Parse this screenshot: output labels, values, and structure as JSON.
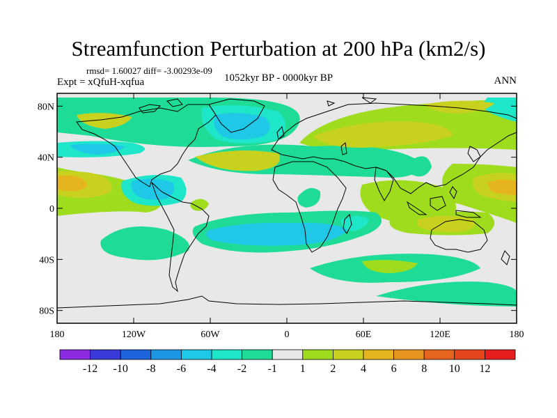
{
  "title": "Streamfunction Perturbation at 200 hPa (km2/s)",
  "stats": "rmsd= 1.60027 diff= -3.00293e-09",
  "experiment": "Expt = xQfuH-xqfua",
  "period": "1052kyr BP - 0000kyr BP",
  "season": "ANN",
  "map": {
    "projection": "cylindrical equidistant",
    "lon_range": [
      -180,
      180
    ],
    "lat_range": [
      -90,
      90
    ],
    "lat_ticks": [
      {
        "value": 80,
        "label": "80N"
      },
      {
        "value": 40,
        "label": "40N"
      },
      {
        "value": 0,
        "label": "0"
      },
      {
        "value": -40,
        "label": "40S"
      },
      {
        "value": -80,
        "label": "80S"
      }
    ],
    "lon_ticks": [
      {
        "value": -180,
        "label": "180"
      },
      {
        "value": -120,
        "label": "120W"
      },
      {
        "value": -60,
        "label": "60W"
      },
      {
        "value": 0,
        "label": "0"
      },
      {
        "value": 60,
        "label": "60E"
      },
      {
        "value": 120,
        "label": "120E"
      },
      {
        "value": 180,
        "label": "180"
      }
    ],
    "background_color": "#e8e8e8"
  },
  "colorbar": {
    "colors": [
      "#8a2be2",
      "#3a3ad8",
      "#1e64dc",
      "#1e96e6",
      "#1ec8e6",
      "#1ee6c8",
      "#1edc96",
      "#e8e8e8",
      "#a0dc1e",
      "#c8d21e",
      "#e6b41e",
      "#e6961e",
      "#e6641e",
      "#e6461e",
      "#e61e1e"
    ],
    "labels": [
      "-12",
      "-10",
      "-8",
      "-6",
      "-4",
      "-2",
      "-1",
      "1",
      "2",
      "4",
      "6",
      "8",
      "10",
      "12"
    ]
  },
  "chart_data": {
    "type": "contour-map",
    "title": "Streamfunction Perturbation at 200 hPa (km2/s)",
    "levels": [
      -12,
      -10,
      -8,
      -6,
      -4,
      -2,
      -1,
      1,
      2,
      4,
      6,
      8,
      10,
      12
    ],
    "features": [
      {
        "lon": 170,
        "lat": 20,
        "value": 4,
        "color": "#e6b41e"
      },
      {
        "lon": -160,
        "lat": 20,
        "value": 4,
        "color": "#e6b41e"
      },
      {
        "lon": -55,
        "lat": 65,
        "value": -4,
        "color": "#1ec8e6"
      },
      {
        "lon": -100,
        "lat": 17,
        "value": -4,
        "color": "#1ec8e6"
      },
      {
        "lon": -160,
        "lat": 42,
        "value": -2,
        "color": "#1ee6c8"
      },
      {
        "lon": -30,
        "lat": -30,
        "value": -2,
        "color": "#1ee6c8"
      },
      {
        "lon": 50,
        "lat": -40,
        "value": -1,
        "color": "#1edc96"
      },
      {
        "lon": -40,
        "lat": 30,
        "value": 2,
        "color": "#c8d21e"
      },
      {
        "lon": 60,
        "lat": 50,
        "value": 2,
        "color": "#c8d21e"
      },
      {
        "lon": 95,
        "lat": 5,
        "value": 2,
        "color": "#a0dc1e"
      },
      {
        "lon": 95,
        "lat": -75,
        "value": -1,
        "color": "#1edc96"
      }
    ]
  }
}
